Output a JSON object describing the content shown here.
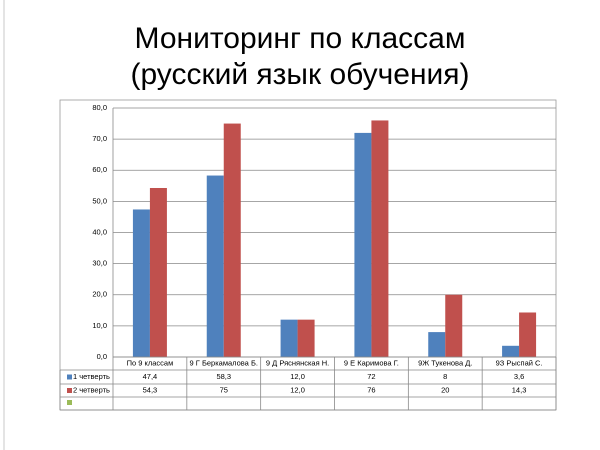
{
  "chart_data": {
    "type": "bar",
    "title": [
      "Мониторинг по классам",
      "(русский язык обучения)"
    ],
    "categories": [
      "По 9 классам",
      "9 Г Беркамалова Б.",
      "9 Д Ряснянская Н.",
      "9 Е Каримова Г.",
      "9Ж Тукенова Д.",
      "9З Рыспай С."
    ],
    "series": [
      {
        "name": "1 четверть",
        "color": "#4f81bd",
        "values": [
          47.4,
          58.3,
          12.0,
          72,
          8,
          3.6
        ],
        "value_labels": [
          "47,4",
          "58,3",
          "12,0",
          "72",
          "8",
          "3,6"
        ]
      },
      {
        "name": "2 четверть",
        "color": "#c0504d",
        "values": [
          54.3,
          75,
          12.0,
          76,
          20,
          14.3
        ],
        "value_labels": [
          "54,3",
          "75",
          "12,0",
          "76",
          "20",
          "14,3"
        ]
      }
    ],
    "ylim": [
      0,
      80
    ],
    "yticks": [
      {
        "value": 0,
        "label": "0,0"
      },
      {
        "value": 10,
        "label": "10,0"
      },
      {
        "value": 20,
        "label": "20,0"
      },
      {
        "value": 30,
        "label": "30,0"
      },
      {
        "value": 40,
        "label": "40,0"
      },
      {
        "value": 50,
        "label": "50,0"
      },
      {
        "value": 60,
        "label": "60,0"
      },
      {
        "value": 70,
        "label": "70,0"
      },
      {
        "value": 80,
        "label": "80,0"
      }
    ],
    "grid": true
  }
}
